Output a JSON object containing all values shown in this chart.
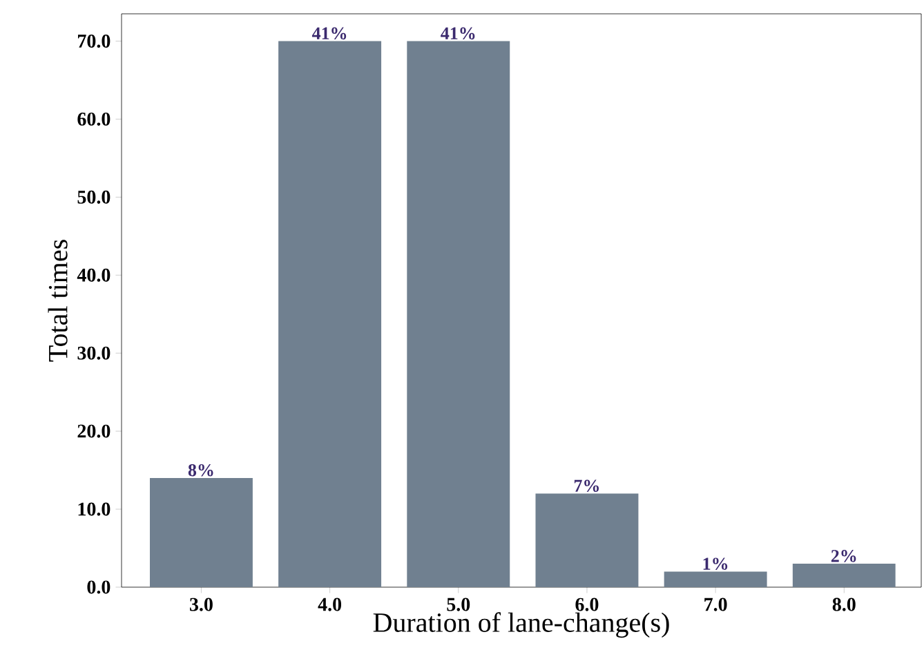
{
  "chart_data": {
    "type": "bar",
    "xlabel": "Duration of lane-change(s)",
    "ylabel": "Total times",
    "categories": [
      "3.0",
      "4.0",
      "5.0",
      "6.0",
      "7.0",
      "8.0"
    ],
    "values": [
      14,
      70,
      70,
      12,
      2,
      3
    ],
    "annotations": [
      {
        "text": "8%",
        "x": "3.0",
        "y": 14
      },
      {
        "text": "41%",
        "x": "4.0",
        "y": 70
      },
      {
        "text": "41%",
        "x": "5.0",
        "y": 70
      },
      {
        "text": "7%",
        "x": "6.0",
        "y": 12
      },
      {
        "text": "1%",
        "x": "7.0",
        "y": 2
      },
      {
        "text": "2%",
        "x": "8.0",
        "y": 3
      }
    ],
    "color": "#708090",
    "ylim": [
      0,
      73.5
    ],
    "yticks": [
      {
        "value": 0,
        "label": "0.0"
      },
      {
        "value": 10,
        "label": "10.0"
      },
      {
        "value": 20,
        "label": "20.0"
      },
      {
        "value": 30,
        "label": "30.0"
      },
      {
        "value": 40,
        "label": "40.0"
      },
      {
        "value": 50,
        "label": "50.0"
      },
      {
        "value": 60,
        "label": "60.0"
      },
      {
        "value": 70,
        "label": "70.0"
      }
    ],
    "grid": false
  }
}
